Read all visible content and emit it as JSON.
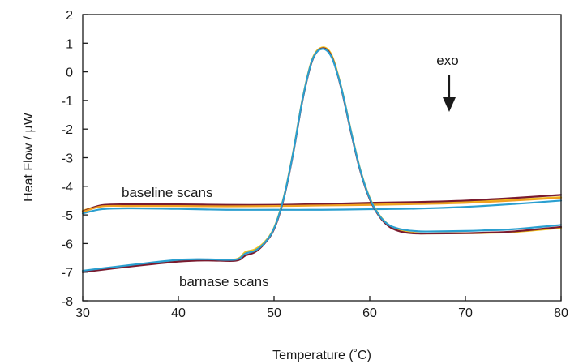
{
  "chart_data": {
    "type": "line",
    "xlabel": "Temperature (˚C)",
    "ylabel": "Heat Flow / µW",
    "xlim": [
      30,
      80
    ],
    "ylim": [
      -8,
      2
    ],
    "xticks": [
      30,
      40,
      50,
      60,
      70,
      80
    ],
    "yticks": [
      2,
      1,
      0,
      -1,
      -2,
      -3,
      -4,
      -5,
      -6,
      -7,
      -8
    ],
    "grid": false,
    "annotations": {
      "exo": "exo",
      "baseline": "baseline scans",
      "barnase": "barnase scans"
    },
    "series": [
      {
        "color": "#f2c21b",
        "x": [
          30,
          32,
          35,
          40,
          45,
          50,
          55,
          60,
          65,
          70,
          75,
          80
        ],
        "y": [
          -4.85,
          -4.68,
          -4.67,
          -4.67,
          -4.68,
          -4.67,
          -4.65,
          -4.62,
          -4.6,
          -4.55,
          -4.47,
          -4.38
        ]
      },
      {
        "color": "#7a1a2e",
        "x": [
          30,
          32,
          35,
          40,
          45,
          50,
          55,
          60,
          65,
          70,
          75,
          80
        ],
        "y": [
          -4.88,
          -4.66,
          -4.63,
          -4.63,
          -4.65,
          -4.65,
          -4.62,
          -4.58,
          -4.55,
          -4.5,
          -4.41,
          -4.3
        ]
      },
      {
        "color": "#f0a020",
        "x": [
          30,
          32,
          35,
          40,
          45,
          50,
          55,
          60,
          65,
          70,
          75,
          80
        ],
        "y": [
          -4.9,
          -4.7,
          -4.69,
          -4.69,
          -4.7,
          -4.69,
          -4.67,
          -4.65,
          -4.62,
          -4.58,
          -4.5,
          -4.4
        ]
      },
      {
        "color": "#2a9fd0",
        "x": [
          30,
          32,
          35,
          40,
          45,
          50,
          55,
          60,
          65,
          70,
          75,
          80
        ],
        "y": [
          -4.95,
          -4.8,
          -4.77,
          -4.79,
          -4.82,
          -4.82,
          -4.82,
          -4.8,
          -4.78,
          -4.72,
          -4.62,
          -4.5
        ]
      },
      {
        "color": "#f2c21b",
        "x": [
          30,
          35,
          40,
          43,
          46,
          47,
          48,
          49,
          50,
          51,
          52,
          53,
          54,
          55,
          56,
          57,
          58,
          59,
          60,
          61,
          62,
          63,
          64,
          65,
          66,
          70,
          72,
          75,
          80
        ],
        "y": [
          -6.98,
          -6.78,
          -6.6,
          -6.56,
          -6.55,
          -6.3,
          -6.2,
          -5.95,
          -5.45,
          -4.4,
          -2.8,
          -0.9,
          0.45,
          0.85,
          0.6,
          -0.5,
          -2.0,
          -3.4,
          -4.4,
          -5.0,
          -5.35,
          -5.52,
          -5.6,
          -5.64,
          -5.65,
          -5.64,
          -5.63,
          -5.6,
          -5.45
        ]
      },
      {
        "color": "#7a1a2e",
        "x": [
          30,
          35,
          40,
          43,
          46,
          47,
          48,
          49,
          50,
          51,
          52,
          53,
          54,
          55,
          56,
          57,
          58,
          59,
          60,
          61,
          62,
          63,
          64,
          65,
          66,
          70,
          72,
          75,
          80
        ],
        "y": [
          -7.0,
          -6.8,
          -6.63,
          -6.59,
          -6.6,
          -6.42,
          -6.3,
          -6.0,
          -5.5,
          -4.45,
          -2.85,
          -0.95,
          0.4,
          0.82,
          0.55,
          -0.55,
          -2.05,
          -3.45,
          -4.45,
          -5.05,
          -5.4,
          -5.56,
          -5.63,
          -5.65,
          -5.65,
          -5.64,
          -5.62,
          -5.58,
          -5.42
        ]
      },
      {
        "color": "#2a9fd0",
        "x": [
          30,
          35,
          40,
          43,
          46,
          47,
          48,
          49,
          50,
          51,
          52,
          53,
          54,
          55,
          56,
          57,
          58,
          59,
          60,
          61,
          62,
          63,
          64,
          65,
          66,
          70,
          72,
          75,
          80
        ],
        "y": [
          -6.95,
          -6.75,
          -6.57,
          -6.55,
          -6.56,
          -6.35,
          -6.25,
          -5.98,
          -5.47,
          -4.42,
          -2.82,
          -0.92,
          0.42,
          0.8,
          0.52,
          -0.52,
          -2.02,
          -3.42,
          -4.42,
          -5.02,
          -5.35,
          -5.48,
          -5.54,
          -5.57,
          -5.58,
          -5.56,
          -5.54,
          -5.5,
          -5.35
        ]
      }
    ]
  }
}
